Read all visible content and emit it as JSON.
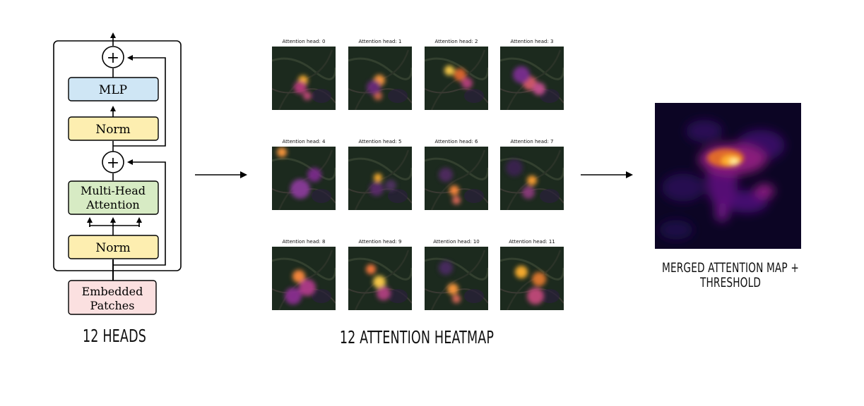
{
  "block": {
    "mlp_label": "MLP",
    "norm_top_label": "Norm",
    "attention_label_line1": "Multi-Head",
    "attention_label_line2": "Attention",
    "norm_bottom_label": "Norm",
    "embedded_line1": "Embedded",
    "embedded_line2": "Patches",
    "add_symbol": "+"
  },
  "colors": {
    "mlp_fill": "#cfe6f5",
    "norm_fill": "#fdeeb0",
    "attention_fill": "#d7ebc4",
    "embedded_fill": "#fbe0e0"
  },
  "heads": [
    {
      "title": "Attention head: 0"
    },
    {
      "title": "Attention head: 1"
    },
    {
      "title": "Attention head: 2"
    },
    {
      "title": "Attention head: 3"
    },
    {
      "title": "Attention head: 4"
    },
    {
      "title": "Attention head: 5"
    },
    {
      "title": "Attention head: 6"
    },
    {
      "title": "Attention head: 7"
    },
    {
      "title": "Attention head: 8"
    },
    {
      "title": "Attention head: 9"
    },
    {
      "title": "Attention head: 10"
    },
    {
      "title": "Attention head: 11"
    }
  ],
  "captions": {
    "left": "12 HEADS",
    "middle": "12 ATTENTION HEATMAP",
    "right_line1": "MERGED ATTENTION MAP +",
    "right_line2": "THRESHOLD"
  }
}
